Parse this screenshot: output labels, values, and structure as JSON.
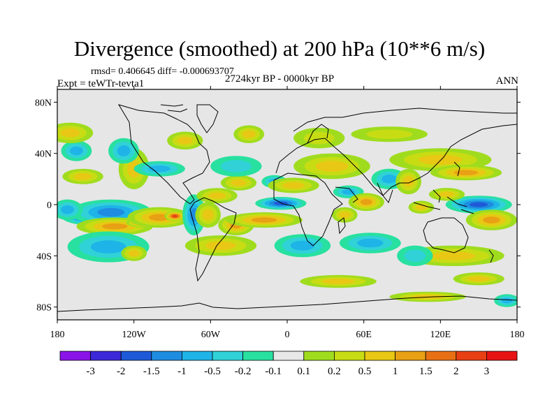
{
  "chart_data": {
    "type": "heatmap",
    "title": "Divergence (smoothed) at 200 hPa (10**6 m/s)",
    "stats": "rmsd= 0.406645  diff= -0.000693707",
    "period": "2724kyr BP - 0000kyr BP",
    "expt": "Expt = teWTr-tevta1",
    "season": "ANN",
    "x_range": [
      -180,
      180
    ],
    "y_range": [
      -90,
      90
    ],
    "x_ticks": [
      {
        "value": -180,
        "label": "180"
      },
      {
        "value": -120,
        "label": "120W"
      },
      {
        "value": -60,
        "label": "60W"
      },
      {
        "value": 0,
        "label": "0"
      },
      {
        "value": 60,
        "label": "60E"
      },
      {
        "value": 120,
        "label": "120E"
      },
      {
        "value": 180,
        "label": "180"
      }
    ],
    "y_ticks": [
      {
        "value": 80,
        "label": "80N"
      },
      {
        "value": 40,
        "label": "40N"
      },
      {
        "value": 0,
        "label": "0"
      },
      {
        "value": -40,
        "label": "40S"
      },
      {
        "value": -80,
        "label": "80S"
      }
    ],
    "colorbar": {
      "labels": [
        "-3",
        "-2",
        "-1.5",
        "-1",
        "-0.5",
        "-0.2",
        "-0.1",
        "0.1",
        "0.2",
        "0.5",
        "1",
        "1.5",
        "2",
        "3"
      ],
      "colors": [
        "#8a14e8",
        "#3c28d8",
        "#1e5ad8",
        "#1e8ce0",
        "#1eb4e8",
        "#30d2d8",
        "#28e0a0",
        "#e8e8e8",
        "#a0dc1e",
        "#c8dc14",
        "#e8c814",
        "#e8a014",
        "#e87014",
        "#e84014",
        "#e81414"
      ]
    },
    "anomalies": [
      {
        "lon": -155,
        "lat": -9,
        "a": 22,
        "b": 7,
        "v": -2.6
      },
      {
        "lon": -138,
        "lat": -6,
        "a": 32,
        "b": 10,
        "v": -1.3
      },
      {
        "lon": -172,
        "lat": -4,
        "a": 12,
        "b": 8,
        "v": -0.6
      },
      {
        "lon": -135,
        "lat": -17,
        "a": 30,
        "b": 7,
        "v": 1.2
      },
      {
        "lon": -112,
        "lat": -14,
        "a": 14,
        "b": 4,
        "v": 2.1
      },
      {
        "lon": -100,
        "lat": -10,
        "a": 25,
        "b": 8,
        "v": 1.4
      },
      {
        "lon": -88,
        "lat": -9,
        "a": 8,
        "b": 4,
        "v": 2.2
      },
      {
        "lon": -160,
        "lat": 22,
        "a": 16,
        "b": 6,
        "v": 0.7
      },
      {
        "lon": -120,
        "lat": 28,
        "a": 12,
        "b": 16,
        "v": 0.6
      },
      {
        "lon": -165,
        "lat": 42,
        "a": 12,
        "b": 8,
        "v": -0.5
      },
      {
        "lon": -128,
        "lat": 42,
        "a": 12,
        "b": 10,
        "v": -0.6
      },
      {
        "lon": -100,
        "lat": 28,
        "a": 20,
        "b": 6,
        "v": -0.5
      },
      {
        "lon": -140,
        "lat": -33,
        "a": 32,
        "b": 12,
        "v": -0.6
      },
      {
        "lon": -120,
        "lat": -38,
        "a": 10,
        "b": 6,
        "v": 0.6
      },
      {
        "lon": -73,
        "lat": -8,
        "a": 9,
        "b": 16,
        "v": -1.2
      },
      {
        "lon": -62,
        "lat": -8,
        "a": 10,
        "b": 10,
        "v": 0.6
      },
      {
        "lon": -55,
        "lat": 7,
        "a": 16,
        "b": 6,
        "v": 0.5
      },
      {
        "lon": -52,
        "lat": -32,
        "a": 28,
        "b": 8,
        "v": 0.6
      },
      {
        "lon": -40,
        "lat": -16,
        "a": 14,
        "b": 8,
        "v": 1.1
      },
      {
        "lon": -5,
        "lat": 1,
        "a": 20,
        "b": 5,
        "v": -1.5
      },
      {
        "lon": -18,
        "lat": -12,
        "a": 30,
        "b": 6,
        "v": 1.1
      },
      {
        "lon": -38,
        "lat": 17,
        "a": 14,
        "b": 6,
        "v": 0.6
      },
      {
        "lon": -10,
        "lat": 18,
        "a": 10,
        "b": 5,
        "v": -0.5
      },
      {
        "lon": -30,
        "lat": 55,
        "a": 12,
        "b": 7,
        "v": 0.5
      },
      {
        "lon": -40,
        "lat": 30,
        "a": 20,
        "b": 8,
        "v": -0.4
      },
      {
        "lon": 12,
        "lat": -32,
        "a": 22,
        "b": 9,
        "v": -0.6
      },
      {
        "lon": 5,
        "lat": 15,
        "a": 20,
        "b": 6,
        "v": 0.7
      },
      {
        "lon": 35,
        "lat": 30,
        "a": 30,
        "b": 10,
        "v": 0.5
      },
      {
        "lon": 25,
        "lat": 52,
        "a": 20,
        "b": 8,
        "v": 0.4
      },
      {
        "lon": 48,
        "lat": 10,
        "a": 12,
        "b": 5,
        "v": -0.6
      },
      {
        "lon": 45,
        "lat": -8,
        "a": 10,
        "b": 6,
        "v": 0.7
      },
      {
        "lon": 62,
        "lat": 2,
        "a": 14,
        "b": 7,
        "v": 1.2
      },
      {
        "lon": 65,
        "lat": -30,
        "a": 24,
        "b": 8,
        "v": -0.6
      },
      {
        "lon": 80,
        "lat": 20,
        "a": 14,
        "b": 8,
        "v": -0.6
      },
      {
        "lon": 95,
        "lat": 18,
        "a": 10,
        "b": 10,
        "v": 0.5
      },
      {
        "lon": 120,
        "lat": 35,
        "a": 40,
        "b": 9,
        "v": 0.7
      },
      {
        "lon": 140,
        "lat": 25,
        "a": 28,
        "b": 6,
        "v": 1.1
      },
      {
        "lon": 150,
        "lat": 0,
        "a": 26,
        "b": 7,
        "v": -1.6
      },
      {
        "lon": 105,
        "lat": -2,
        "a": 10,
        "b": 5,
        "v": 0.8
      },
      {
        "lon": 125,
        "lat": 8,
        "a": 14,
        "b": 5,
        "v": 0.7
      },
      {
        "lon": 160,
        "lat": -12,
        "a": 20,
        "b": 8,
        "v": 1.1
      },
      {
        "lon": 130,
        "lat": -40,
        "a": 40,
        "b": 8,
        "v": 0.5
      },
      {
        "lon": 100,
        "lat": -40,
        "a": 14,
        "b": 8,
        "v": -0.4
      },
      {
        "lon": 150,
        "lat": -58,
        "a": 20,
        "b": 5,
        "v": 0.5
      },
      {
        "lon": 40,
        "lat": -60,
        "a": 30,
        "b": 5,
        "v": 0.5
      },
      {
        "lon": 110,
        "lat": -72,
        "a": 30,
        "b": 4,
        "v": 0.5
      },
      {
        "lon": 172,
        "lat": -75,
        "a": 10,
        "b": 5,
        "v": -0.5
      },
      {
        "lon": -170,
        "lat": 56,
        "a": 18,
        "b": 8,
        "v": 0.5
      },
      {
        "lon": 80,
        "lat": 55,
        "a": 30,
        "b": 6,
        "v": 0.4
      },
      {
        "lon": -80,
        "lat": 50,
        "a": 14,
        "b": 7,
        "v": 0.5
      }
    ]
  }
}
